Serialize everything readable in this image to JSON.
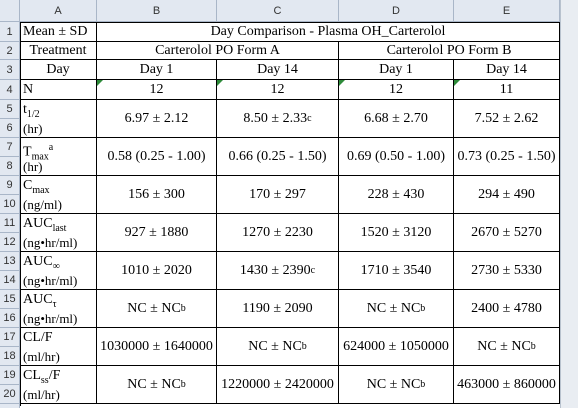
{
  "column_headers": [
    "A",
    "B",
    "C",
    "D",
    "E"
  ],
  "row_numbers": [
    1,
    2,
    3,
    4,
    5,
    6,
    7,
    8,
    9,
    10,
    11,
    12,
    13,
    14,
    15,
    16,
    17,
    18,
    19,
    20
  ],
  "table": {
    "title_row": {
      "label": "Mean ± SD",
      "title": "Day Comparison - Plasma OH_Carterolol"
    },
    "treatment_row": {
      "label": "Treatment",
      "groups": [
        "Carterolol PO Form A",
        "Carterolol PO Form B"
      ]
    },
    "day_row": {
      "label": "Day",
      "days": [
        "Day 1",
        "Day 14",
        "Day 1",
        "Day 14"
      ]
    },
    "n_row": {
      "label": "N",
      "values": [
        12,
        12,
        12,
        11
      ]
    },
    "parameters": [
      {
        "name": {
          "main": "t",
          "sub": "1/2",
          "unit": "(hr)"
        },
        "cells": [
          {
            "text": "6.97 ± 2.12"
          },
          {
            "text": "8.50 ± 2.33",
            "sup": "c"
          },
          {
            "text": "6.68 ± 2.70"
          },
          {
            "text": "7.52 ± 2.62"
          }
        ]
      },
      {
        "name": {
          "main": "T",
          "sub": "max",
          "sup": "a",
          "unit": "(hr)"
        },
        "cells": [
          {
            "text": "0.58 (0.25 - 1.00)"
          },
          {
            "text": "0.66 (0.25 - 1.50)"
          },
          {
            "text": "0.69 (0.50 - 1.00)"
          },
          {
            "text": "0.73 (0.25 - 1.50)"
          }
        ]
      },
      {
        "name": {
          "main": "C",
          "sub": "max",
          "unit": "(ng/ml)"
        },
        "cells": [
          {
            "text": "156 ± 300"
          },
          {
            "text": "170 ± 297"
          },
          {
            "text": "228 ± 430"
          },
          {
            "text": "294 ± 490"
          }
        ]
      },
      {
        "name": {
          "main": "AUC",
          "sub": "last",
          "unit": "(ng•hr/ml)"
        },
        "cells": [
          {
            "text": "927 ± 1880"
          },
          {
            "text": "1270 ± 2230"
          },
          {
            "text": "1520 ± 3120"
          },
          {
            "text": "2670 ± 5270"
          }
        ]
      },
      {
        "name": {
          "main": "AUC",
          "sub": "∞",
          "unit": "(ng•hr/ml)"
        },
        "cells": [
          {
            "text": "1010 ± 2020"
          },
          {
            "text": "1430 ± 2390",
            "sup": "c"
          },
          {
            "text": "1710 ± 3540"
          },
          {
            "text": "2730 ± 5330"
          }
        ]
      },
      {
        "name": {
          "main": "AUC",
          "sub": "τ",
          "unit": "(ng•hr/ml)"
        },
        "cells": [
          {
            "text": "NC ± NC",
            "sup": "b"
          },
          {
            "text": "1190 ± 2090"
          },
          {
            "text": "NC ± NC",
            "sup": "b"
          },
          {
            "text": "2400 ± 4780"
          }
        ]
      },
      {
        "name": {
          "main": "CL/F",
          "unit": "(ml/hr)"
        },
        "cells": [
          {
            "text": "1030000 ± 1640000"
          },
          {
            "text": "NC ± NC",
            "sup": "b"
          },
          {
            "text": "624000 ± 1050000"
          },
          {
            "text": "NC ± NC",
            "sup": "b"
          }
        ]
      },
      {
        "name": {
          "main": "CL",
          "sub": "ss",
          "after": "/F",
          "unit": "(ml/hr)"
        },
        "cells": [
          {
            "text": "NC ± NC",
            "sup": "b"
          },
          {
            "text": "1220000 ± 2420000"
          },
          {
            "text": "NC ± NC",
            "sup": "b"
          },
          {
            "text": "463000 ± 860000"
          }
        ]
      }
    ]
  }
}
